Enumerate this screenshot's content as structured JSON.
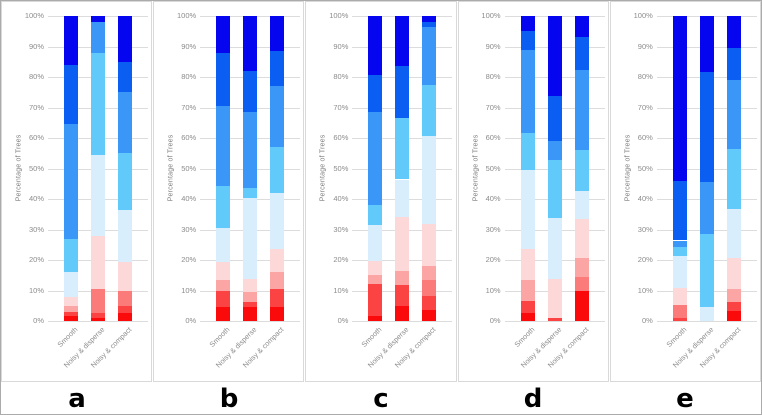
{
  "figure": {
    "panel_letters": [
      "a",
      "b",
      "c",
      "d",
      "e"
    ]
  },
  "chart_data": {
    "type": "stacked_bar",
    "title": "",
    "ylabel": "Percentage of Trees",
    "xlabel": "",
    "ylim": [
      0,
      100
    ],
    "yticks": [
      "100%",
      "90%",
      "80%",
      "70%",
      "60%",
      "50%",
      "40%",
      "30%",
      "20%",
      "10%",
      "0%"
    ],
    "grid": true,
    "grid_color": "#dcdcdc",
    "legend": "none",
    "categories": [
      "Smooth",
      "Noisy & disperse",
      "Noisy & compact"
    ],
    "palette_order_bottom_to_top": [
      "bright_red",
      "red",
      "salmon_red",
      "salmon",
      "pale_pink",
      "pale_blue",
      "sky_blue",
      "dodger_blue",
      "royal_blue",
      "dark_blue"
    ],
    "palette": {
      "bright_red": "#fa0a0a",
      "red": "#fb4343",
      "salmon_red": "#fb7b7b",
      "salmon": "#fba5a5",
      "pale_pink": "#fcd8d8",
      "pale_blue": "#d8eefc",
      "sky_blue": "#62c9fb",
      "dodger_blue": "#3b97f7",
      "royal_blue": "#0a5ff2",
      "dark_blue": "#0505f0"
    },
    "panels": [
      {
        "letter": "a",
        "bars": [
          {
            "category": "Smooth",
            "segments": [
              [
                "bright_red",
                1.5
              ],
              [
                "red",
                1.5
              ],
              [
                "salmon",
                2
              ],
              [
                "pale_pink",
                3
              ],
              [
                "pale_blue",
                8
              ],
              [
                "sky_blue",
                11
              ],
              [
                "dodger_blue",
                37.5
              ],
              [
                "royal_blue",
                19.5
              ],
              [
                "dark_blue",
                16
              ]
            ]
          },
          {
            "category": "Noisy & disperse",
            "segments": [
              [
                "bright_red",
                1
              ],
              [
                "red",
                1.5
              ],
              [
                "salmon_red",
                8
              ],
              [
                "pale_pink",
                17.5
              ],
              [
                "pale_blue",
                26.5
              ],
              [
                "sky_blue",
                33.5
              ],
              [
                "dodger_blue",
                10
              ],
              [
                "dark_blue",
                2
              ]
            ]
          },
          {
            "category": "Noisy & compact",
            "segments": [
              [
                "bright_red",
                2.5
              ],
              [
                "red",
                2.5
              ],
              [
                "salmon_red",
                5
              ],
              [
                "pale_pink",
                9.5
              ],
              [
                "pale_blue",
                17
              ],
              [
                "sky_blue",
                18.5
              ],
              [
                "dodger_blue",
                20
              ],
              [
                "royal_blue",
                10
              ],
              [
                "dark_blue",
                15
              ]
            ]
          }
        ]
      },
      {
        "letter": "b",
        "bars": [
          {
            "category": "Smooth",
            "segments": [
              [
                "bright_red",
                4.7
              ],
              [
                "red",
                5.3
              ],
              [
                "salmon",
                3.5
              ],
              [
                "pale_pink",
                6
              ],
              [
                "pale_blue",
                11
              ],
              [
                "sky_blue",
                13.8
              ],
              [
                "dodger_blue",
                26.2
              ],
              [
                "royal_blue",
                17.5
              ],
              [
                "dark_blue",
                12
              ]
            ]
          },
          {
            "category": "Noisy & disperse",
            "segments": [
              [
                "bright_red",
                4.7
              ],
              [
                "red",
                1.5
              ],
              [
                "salmon",
                3.3
              ],
              [
                "pale_pink",
                4.2
              ],
              [
                "pale_blue",
                26.6
              ],
              [
                "sky_blue",
                3.3
              ],
              [
                "dodger_blue",
                24.9
              ],
              [
                "royal_blue",
                13.5
              ],
              [
                "dark_blue",
                18
              ]
            ]
          },
          {
            "category": "Noisy & compact",
            "segments": [
              [
                "bright_red",
                4.7
              ],
              [
                "red",
                5.8
              ],
              [
                "salmon",
                5.5
              ],
              [
                "pale_pink",
                7.7
              ],
              [
                "pale_blue",
                18.2
              ],
              [
                "sky_blue",
                15.1
              ],
              [
                "dodger_blue",
                20
              ],
              [
                "royal_blue",
                11.5
              ],
              [
                "dark_blue",
                11.5
              ]
            ]
          }
        ]
      },
      {
        "letter": "c",
        "bars": [
          {
            "category": "Smooth",
            "segments": [
              [
                "bright_red",
                1.7
              ],
              [
                "red",
                10.4
              ],
              [
                "salmon",
                2.9
              ],
              [
                "pale_pink",
                4.6
              ],
              [
                "pale_blue",
                11.8
              ],
              [
                "sky_blue",
                6.5
              ],
              [
                "dodger_blue",
                30.6
              ],
              [
                "royal_blue",
                12
              ],
              [
                "dark_blue",
                19.5
              ]
            ]
          },
          {
            "category": "Noisy & disperse",
            "segments": [
              [
                "bright_red",
                4.9
              ],
              [
                "red",
                7
              ],
              [
                "salmon",
                4.6
              ],
              [
                "pale_pink",
                17.7
              ],
              [
                "pale_blue",
                12.2
              ],
              [
                "sky_blue",
                20.1
              ],
              [
                "royal_blue",
                17
              ],
              [
                "dark_blue",
                16.5
              ]
            ]
          },
          {
            "category": "Noisy & compact",
            "segments": [
              [
                "bright_red",
                3.5
              ],
              [
                "red",
                4.8
              ],
              [
                "salmon_red",
                5.2
              ],
              [
                "salmon",
                4.5
              ],
              [
                "pale_pink",
                13.8
              ],
              [
                "pale_blue",
                28.7
              ],
              [
                "sky_blue",
                17
              ],
              [
                "dodger_blue",
                19
              ],
              [
                "royal_blue",
                1.5
              ],
              [
                "dark_blue",
                2
              ]
            ]
          }
        ]
      },
      {
        "letter": "d",
        "bars": [
          {
            "category": "Smooth",
            "segments": [
              [
                "bright_red",
                2.5
              ],
              [
                "red",
                4
              ],
              [
                "salmon",
                6.9
              ],
              [
                "pale_pink",
                10.3
              ],
              [
                "pale_blue",
                25.7
              ],
              [
                "sky_blue",
                12.2
              ],
              [
                "dodger_blue",
                27.4
              ],
              [
                "royal_blue",
                6.1
              ],
              [
                "dark_blue",
                4.9
              ]
            ]
          },
          {
            "category": "Noisy & disperse",
            "segments": [
              [
                "red",
                1
              ],
              [
                "pale_pink",
                12.7
              ],
              [
                "pale_blue",
                20.1
              ],
              [
                "sky_blue",
                18.9
              ],
              [
                "dodger_blue",
                6.3
              ],
              [
                "royal_blue",
                14.7
              ],
              [
                "dark_blue",
                26.3
              ]
            ]
          },
          {
            "category": "Noisy & compact",
            "segments": [
              [
                "bright_red",
                9.7
              ],
              [
                "salmon_red",
                4.6
              ],
              [
                "salmon",
                6.4
              ],
              [
                "pale_pink",
                12.8
              ],
              [
                "pale_blue",
                9.2
              ],
              [
                "sky_blue",
                13.3
              ],
              [
                "dodger_blue",
                26.4
              ],
              [
                "royal_blue",
                10.7
              ],
              [
                "dark_blue",
                6.9
              ]
            ]
          }
        ]
      },
      {
        "letter": "e",
        "bars": [
          {
            "category": "Smooth",
            "segments": [
              [
                "red",
                1
              ],
              [
                "salmon_red",
                4.1
              ],
              [
                "pale_pink",
                5.8
              ],
              [
                "pale_blue",
                10.4
              ],
              [
                "sky_blue",
                3
              ],
              [
                "dodger_blue",
                2.1
              ],
              [
                "royal_blue",
                19.5
              ],
              [
                "dark_blue",
                54.1
              ]
            ]
          },
          {
            "category": "Noisy & disperse",
            "segments": [
              [
                "pale_blue",
                4.7
              ],
              [
                "sky_blue",
                23.9
              ],
              [
                "dodger_blue",
                16.9
              ],
              [
                "royal_blue",
                36
              ],
              [
                "dark_blue",
                18.5
              ]
            ]
          },
          {
            "category": "Noisy & compact",
            "segments": [
              [
                "bright_red",
                3.4
              ],
              [
                "red",
                2.8
              ],
              [
                "salmon",
                4.2
              ],
              [
                "pale_pink",
                10.1
              ],
              [
                "pale_blue",
                16.1
              ],
              [
                "sky_blue",
                19.9
              ],
              [
                "dodger_blue",
                22.5
              ],
              [
                "royal_blue",
                10.5
              ],
              [
                "dark_blue",
                10.5
              ]
            ]
          }
        ]
      }
    ]
  }
}
